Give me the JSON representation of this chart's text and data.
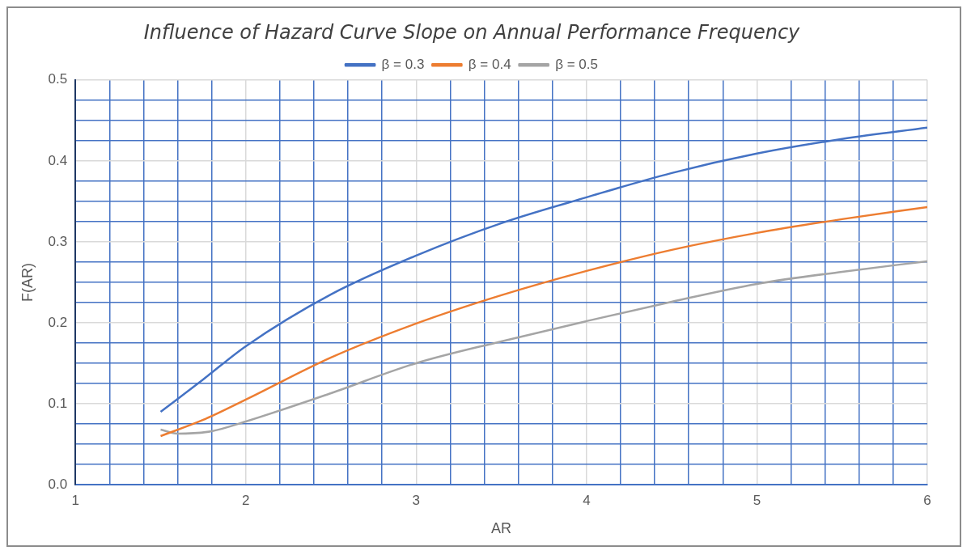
{
  "chart_data": {
    "type": "line",
    "title": "Influence of Hazard Curve Slope on Annual Performance Frequency",
    "xlabel": "AR",
    "ylabel": "F(AR)",
    "xlim": [
      1,
      6
    ],
    "ylim": [
      0,
      0.5
    ],
    "xticks": [
      1,
      {
        "value": 1.2,
        "label": null
      },
      {
        "value": 1.4,
        "label": null
      },
      {
        "value": 1.6,
        "label": null
      },
      {
        "value": 1.8,
        "label": null
      },
      2,
      {
        "value": 2.2,
        "label": null
      },
      {
        "value": 2.4,
        "label": null
      },
      {
        "value": 2.6,
        "label": null
      },
      {
        "value": 2.8,
        "label": null
      },
      3,
      {
        "value": 3.2,
        "label": null
      },
      {
        "value": 3.4,
        "label": null
      },
      {
        "value": 3.6,
        "label": null
      },
      {
        "value": 3.8,
        "label": null
      },
      4,
      {
        "value": 4.2,
        "label": null
      },
      {
        "value": 4.4,
        "label": null
      },
      {
        "value": 4.6,
        "label": null
      },
      {
        "value": 4.8,
        "label": null
      },
      5,
      {
        "value": 5.2,
        "label": null
      },
      {
        "value": 5.4,
        "label": null
      },
      {
        "value": 5.6,
        "label": null
      },
      {
        "value": 5.8,
        "label": null
      },
      6
    ],
    "yticks": [
      {
        "value": 0,
        "label": "0.0"
      },
      {
        "value": 0.025,
        "label": null
      },
      {
        "value": 0.05,
        "label": null
      },
      {
        "value": 0.075,
        "label": null
      },
      0.1,
      {
        "value": 0.125,
        "label": null
      },
      {
        "value": 0.15,
        "label": null
      },
      {
        "value": 0.175,
        "label": null
      },
      0.2,
      {
        "value": 0.225,
        "label": null
      },
      {
        "value": 0.25,
        "label": null
      },
      {
        "value": 0.275,
        "label": null
      },
      0.3,
      {
        "value": 0.325,
        "label": null
      },
      {
        "value": 0.35,
        "label": null
      },
      {
        "value": 0.375,
        "label": null
      },
      0.4,
      {
        "value": 0.425,
        "label": null
      },
      {
        "value": 0.45,
        "label": null
      },
      {
        "value": 0.475,
        "label": null
      },
      0.5
    ],
    "grid": true,
    "legend": "top",
    "marker": "none",
    "line_style": "solid",
    "series": [
      {
        "name": "β = 0.3",
        "color": "#4472c4",
        "x": [
          1.5,
          1.75,
          2,
          2.5,
          3,
          3.5,
          4,
          4.5,
          5,
          5.5,
          6
        ],
        "values": [
          0.09,
          0.13,
          0.171,
          0.235,
          0.283,
          0.323,
          0.355,
          0.385,
          0.409,
          0.427,
          0.441
        ]
      },
      {
        "name": "β = 0.4",
        "color": "#ed7d31",
        "x": [
          1.5,
          1.75,
          2,
          2.5,
          3,
          3.5,
          4,
          4.5,
          5,
          5.5,
          6
        ],
        "values": [
          0.06,
          0.08,
          0.105,
          0.157,
          0.199,
          0.234,
          0.264,
          0.29,
          0.311,
          0.328,
          0.343
        ]
      },
      {
        "name": "β = 0.5",
        "color": "#a5a5a5",
        "x": [
          1.5,
          1.6,
          1.8,
          2,
          2.5,
          3,
          3.5,
          4,
          4.5,
          5,
          5.5,
          6
        ],
        "values": [
          0.068,
          0.063,
          0.066,
          0.078,
          0.113,
          0.15,
          0.177,
          0.202,
          0.226,
          0.248,
          0.263,
          0.276
        ]
      }
    ]
  }
}
